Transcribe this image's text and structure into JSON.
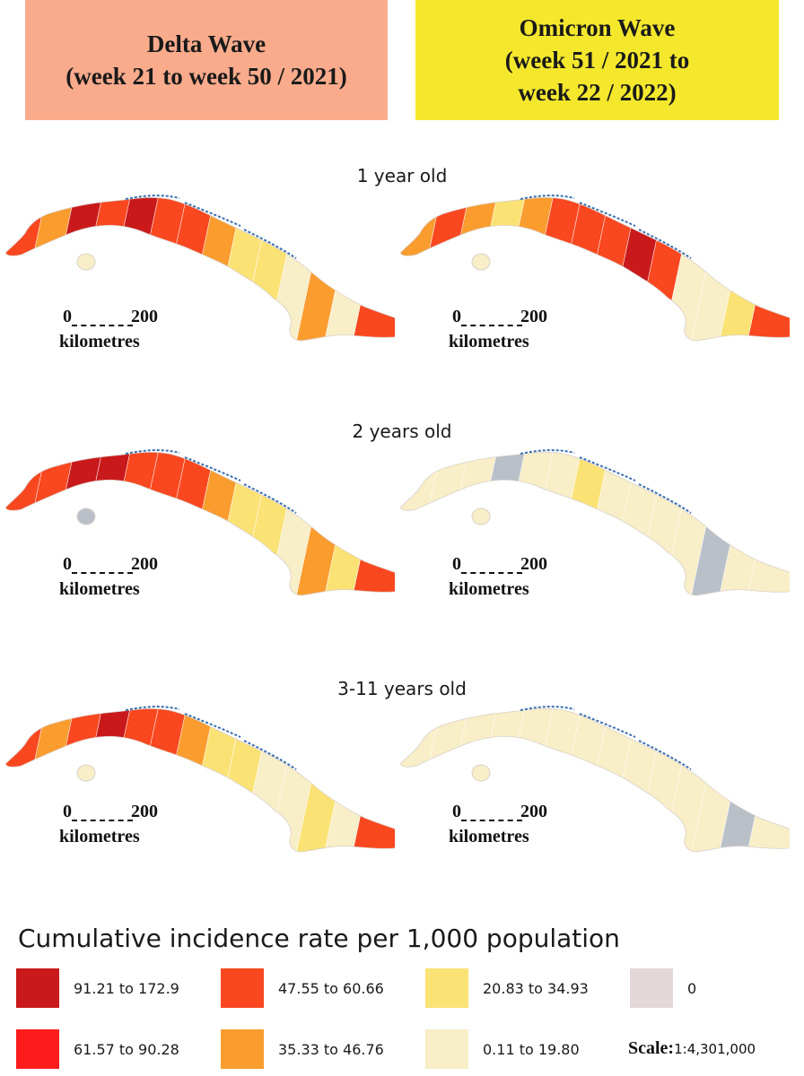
{
  "headers": {
    "delta": {
      "line1": "Delta Wave",
      "line2": "(week 21 to week 50 / 2021)"
    },
    "omicron": {
      "line1": "Omicron Wave",
      "line2": "(week 51 / 2021 to",
      "line3": "week 22 / 2022)"
    }
  },
  "rows": [
    {
      "title": "1 year old"
    },
    {
      "title": "2 years old"
    },
    {
      "title": "3-11 years old"
    }
  ],
  "scalebar": {
    "start": "0",
    "end": "200",
    "unit": "kilometres"
  },
  "legend": {
    "title": "Cumulative incidence rate per 1,000 population",
    "items": [
      {
        "label": "91.21 to 172.9",
        "color": "#c9191b"
      },
      {
        "label": "47.55 to 60.66",
        "color": "#f9471f"
      },
      {
        "label": "20.83 to 34.93",
        "color": "#fbe274"
      },
      {
        "label": "0",
        "color": "#e3d8d8"
      },
      {
        "label": "61.57 to 90.28",
        "color": "#fd1c1c"
      },
      {
        "label": "35.33 to 46.76",
        "color": "#fa9c2e"
      },
      {
        "label": "0.11 to 19.80",
        "color": "#f8eec7"
      }
    ],
    "scale_label": "Scale:",
    "scale_value": "1:4,301,000"
  },
  "colors": {
    "delta_header": "#f9ab8c",
    "omicron_header": "#f5e82c",
    "coast": "#3a6fb0",
    "no_data": "#b9c0c8"
  }
}
